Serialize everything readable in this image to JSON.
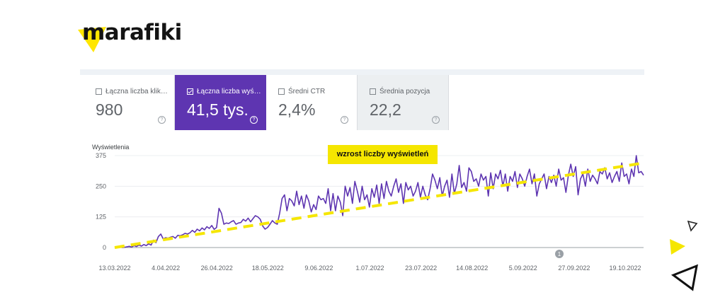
{
  "brand": {
    "name": "marafiki",
    "accent": "#ffe600"
  },
  "cards": [
    {
      "label": "Łączna liczba klik…",
      "value": "980",
      "checked": false
    },
    {
      "label": "Łączna liczba wyś…",
      "value": "41,5 tys.",
      "checked": true
    },
    {
      "label": "Średni CTR",
      "value": "2,4%",
      "checked": false
    },
    {
      "label": "Średnia pozycja",
      "value": "22,2",
      "checked": false
    }
  ],
  "colors": {
    "series": "#5e35b1",
    "trend": "#f5e600",
    "selected_card": "#5e35b1"
  },
  "chart_data": {
    "type": "line",
    "ylabel": "Wyświetlenia",
    "yticks": [
      0,
      125,
      250,
      375
    ],
    "ylim": [
      0,
      375
    ],
    "xticks": [
      "13.03.2022",
      "4.04.2022",
      "26.04.2022",
      "18.05.2022",
      "9.06.2022",
      "1.07.2022",
      "23.07.2022",
      "14.08.2022",
      "5.09.2022",
      "27.09.2022",
      "19.10.2022"
    ],
    "annotation": "wzrost liczby wyświetleń",
    "marker_label": "1",
    "series": [
      {
        "values": [
          0,
          2,
          4,
          0,
          1,
          3,
          5,
          2,
          8,
          4,
          10,
          6,
          12,
          8,
          15,
          10,
          30,
          20,
          45,
          55,
          35,
          40,
          38,
          42,
          45,
          38,
          50,
          48,
          52,
          58,
          55,
          60,
          70,
          62,
          75,
          68,
          80,
          72,
          85,
          78,
          90,
          74,
          82,
          160,
          140,
          95,
          100,
          98,
          105,
          110,
          95,
          100,
          102,
          115,
          108,
          120,
          105,
          118,
          130,
          125,
          115,
          88,
          75,
          82,
          95,
          110,
          100,
          95,
          140,
          200,
          215,
          150,
          200,
          190,
          170,
          230,
          175,
          210,
          160,
          215,
          190,
          145,
          175,
          155,
          210,
          195,
          200,
          180,
          240,
          150,
          220,
          150,
          210,
          185,
          130,
          250,
          210,
          245,
          180,
          270,
          230,
          185,
          250,
          195,
          215,
          165,
          240,
          205,
          255,
          180,
          260,
          200,
          270,
          230,
          210,
          250,
          280,
          225,
          260,
          180,
          265,
          235,
          250,
          210,
          230,
          265,
          205,
          250,
          215,
          195,
          240,
          300,
          275,
          240,
          285,
          210,
          250,
          275,
          205,
          300,
          220,
          260,
          335,
          245,
          265,
          230,
          325,
          310,
          270,
          280,
          250,
          300,
          275,
          290,
          210,
          305,
          240,
          300,
          280,
          315,
          250,
          300,
          230,
          290,
          270,
          310,
          245,
          300,
          280,
          250,
          290,
          320,
          260,
          300,
          210,
          260,
          280,
          300,
          240,
          290,
          265,
          295,
          250,
          320,
          275,
          285,
          225,
          295,
          340,
          290,
          330,
          215,
          280,
          300,
          250,
          320,
          270,
          295,
          280,
          260,
          310,
          300,
          325,
          280,
          305,
          265,
          290,
          310,
          270,
          345,
          290,
          300,
          260,
          320,
          290,
          375,
          305,
          310,
          295
        ]
      }
    ]
  }
}
